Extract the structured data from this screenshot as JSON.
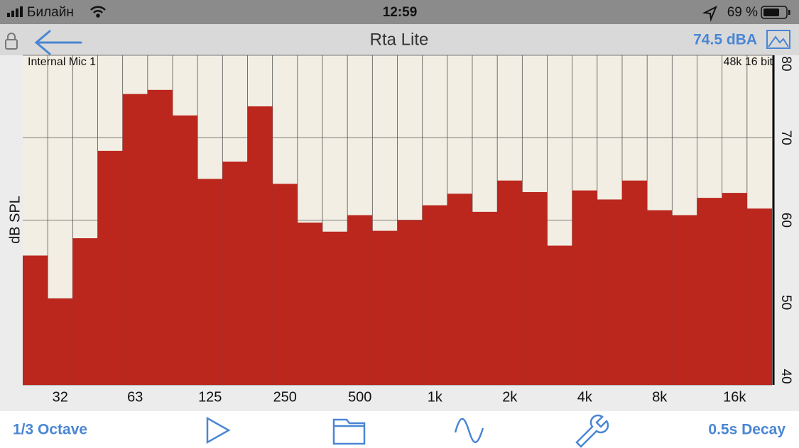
{
  "status_bar": {
    "carrier": "Билайн",
    "time": "12:59",
    "battery": "69 %"
  },
  "nav_bar": {
    "title": "Rta Lite",
    "level": "74.5 dBA"
  },
  "chart_data": {
    "type": "bar",
    "y_label": "dB SPL",
    "annotations": [
      "Internal Mic 1",
      "48k 16 bit"
    ],
    "categories": [
      null,
      "32",
      null,
      null,
      "63",
      null,
      null,
      "125",
      null,
      null,
      "250",
      null,
      null,
      "500",
      null,
      null,
      "1k",
      null,
      null,
      "2k",
      null,
      null,
      "4k",
      null,
      null,
      "8k",
      null,
      null,
      "16k",
      null
    ],
    "values": [
      55.7,
      50.5,
      57.8,
      68.4,
      75.3,
      75.8,
      72.7,
      65.0,
      67.1,
      73.8,
      64.4,
      59.7,
      58.6,
      60.6,
      58.7,
      60.0,
      61.8,
      63.2,
      61.0,
      64.8,
      63.4,
      56.9,
      63.6,
      62.5,
      64.8,
      61.2,
      60.6,
      62.7,
      63.3,
      61.4
    ],
    "color": "#bb261d",
    "ylim": [
      40,
      80
    ],
    "yticks": [
      40,
      50,
      60,
      70,
      80
    ],
    "grid": true
  },
  "toolbar": {
    "resolution": "1/3 Octave",
    "decay": "0.5s Decay"
  }
}
